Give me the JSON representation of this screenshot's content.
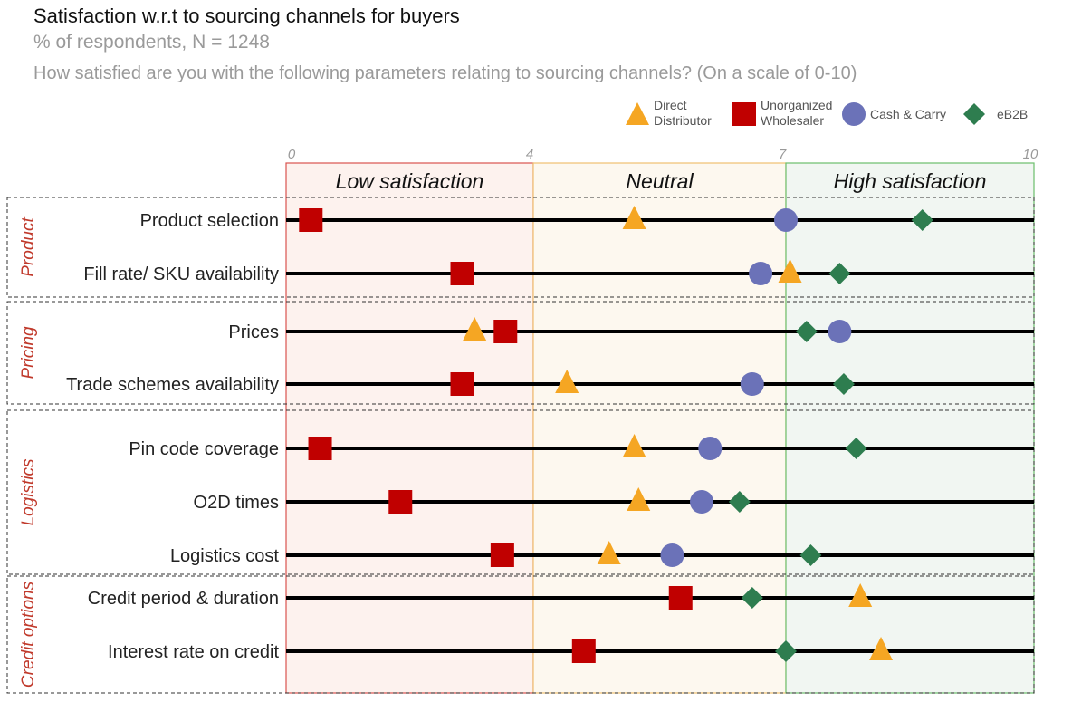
{
  "chart_data": {
    "type": "scatter",
    "title": "Satisfaction w.r.t to sourcing channels for buyers",
    "subtitle": "% of respondents, N = 1248",
    "question": "How satisfied are you with the following parameters relating to sourcing channels? (On a scale of 0-10)",
    "ticks": [
      "0",
      "4",
      "7",
      "10"
    ],
    "xlim": [
      0,
      10
    ],
    "zones": [
      {
        "label": "Low satisfaction",
        "from": 0,
        "to": 4,
        "fill": "#fdf2ee",
        "stroke": "#d9534f"
      },
      {
        "label": "Neutral",
        "from": 4,
        "to": 7,
        "fill": "#fdf8ef",
        "stroke": "#f0c070"
      },
      {
        "label": "High satisfaction",
        "from": 7,
        "to": 10,
        "fill": "#f1f6f2",
        "stroke": "#6cbf6c"
      }
    ],
    "legend_position": "top-right",
    "series": [
      {
        "name": "Direct Distributor",
        "legend": [
          "Direct",
          "Distributor"
        ],
        "marker": "triangle",
        "color": "#f5a623"
      },
      {
        "name": "Unorganized Wholesaler",
        "legend": [
          "Unorganized",
          "Wholesaler"
        ],
        "marker": "square",
        "color": "#c00000"
      },
      {
        "name": "Cash & Carry",
        "legend": [
          "Cash & Carry"
        ],
        "marker": "circle",
        "color": "#6b72b8"
      },
      {
        "name": "eB2B",
        "legend": [
          "eB2B"
        ],
        "marker": "diamond",
        "color": "#2e7d4f"
      }
    ],
    "groups": [
      {
        "label": "Product",
        "rows": [
          {
            "label": "Product selection",
            "values": [
              5.2,
              0.4,
              7.0,
              8.65
            ]
          },
          {
            "label": "Fill rate/ SKU availability",
            "values": [
              7.05,
              2.85,
              6.7,
              7.65
            ]
          }
        ]
      },
      {
        "label": "Pricing",
        "rows": [
          {
            "label": "Prices",
            "values": [
              3.05,
              3.55,
              7.65,
              7.25
            ]
          },
          {
            "label": "Trade schemes availability",
            "values": [
              4.4,
              2.85,
              6.6,
              7.7
            ]
          }
        ]
      },
      {
        "label": "Logistics",
        "rows": [
          {
            "label": "Pin code coverage",
            "values": [
              5.2,
              0.55,
              6.1,
              7.85
            ]
          },
          {
            "label": "O2D times",
            "values": [
              5.25,
              1.85,
              6.0,
              6.45
            ]
          },
          {
            "label": "Logistics cost",
            "values": [
              4.9,
              3.5,
              5.65,
              7.3
            ]
          }
        ]
      },
      {
        "label": "Credit options",
        "rows": [
          {
            "label": "Credit period & duration",
            "values": [
              7.9,
              5.75,
              null,
              6.6
            ]
          },
          {
            "label": "Interest rate on credit",
            "values": [
              8.15,
              4.6,
              null,
              7.0
            ]
          }
        ]
      }
    ]
  }
}
